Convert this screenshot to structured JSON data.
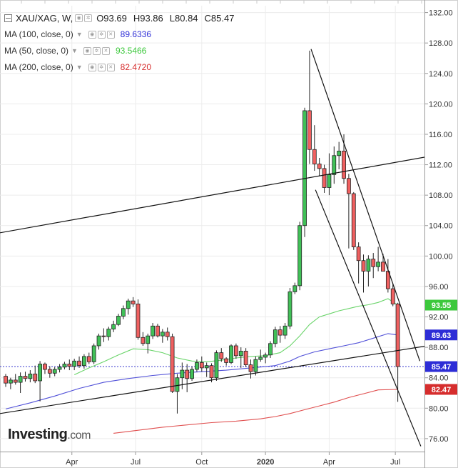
{
  "legend": {
    "title": "XAU/XAG, W,",
    "open": "O93.69",
    "high": "H93.86",
    "low": "L80.84",
    "close": "C85.47",
    "mas": [
      {
        "label": "MA (100, close, 0)",
        "value": "89.6336",
        "color": "#2d2dd6"
      },
      {
        "label": "MA (50, close, 0)",
        "value": "93.5466",
        "color": "#3cc83c"
      },
      {
        "label": "MA (200, close, 0)",
        "value": "82.4720",
        "color": "#d62d2d"
      }
    ]
  },
  "logo": {
    "brand": "Investing",
    "suffix": ".com"
  },
  "chart_data": {
    "type": "candlestick",
    "symbol": "XAU/XAG",
    "interval": "W",
    "y_range": [
      74.3,
      132.9
    ],
    "y_ticks": [
      "132.00",
      "128.00",
      "124.00",
      "120.00",
      "116.00",
      "112.00",
      "108.00",
      "104.00",
      "100.00",
      "96.00",
      "92.00",
      "88.00",
      "84.00",
      "80.00",
      "76.00"
    ],
    "x_labels": [
      "Apr",
      "Jul",
      "Oct",
      "2020",
      "Apr",
      "Jul"
    ],
    "x_label_positions_weeks": [
      13.5,
      26.5,
      40,
      53,
      66,
      79.5
    ],
    "price_tags": [
      {
        "value": 93.55,
        "label": "93.55",
        "color": "#3cc83c"
      },
      {
        "value": 89.63,
        "label": "89.63",
        "color": "#2d2dd6"
      },
      {
        "value": 85.47,
        "label": "85.47",
        "color": "#2d2dd6"
      },
      {
        "value": 82.47,
        "label": "82.47",
        "color": "#d62d2d"
      }
    ],
    "last_price_line": 85.47,
    "candles": [
      [
        84.2,
        84.5,
        82.8,
        83.3
      ],
      [
        83.3,
        84.0,
        82.5,
        83.7
      ],
      [
        83.7,
        84.5,
        83.1,
        83.4
      ],
      [
        83.4,
        84.7,
        82.0,
        84.2
      ],
      [
        84.2,
        84.8,
        83.5,
        83.9
      ],
      [
        83.9,
        85.0,
        83.4,
        84.5
      ],
      [
        84.5,
        85.6,
        83.3,
        83.6
      ],
      [
        83.6,
        86.2,
        80.9,
        85.8
      ],
      [
        85.8,
        86.0,
        84.5,
        85.1
      ],
      [
        85.1,
        85.5,
        84.0,
        84.6
      ],
      [
        84.6,
        85.4,
        84.2,
        85.1
      ],
      [
        85.1,
        85.8,
        84.7,
        85.4
      ],
      [
        85.4,
        86.1,
        85.1,
        85.8
      ],
      [
        85.8,
        86.4,
        85.0,
        85.5
      ],
      [
        85.5,
        86.5,
        85.0,
        86.2
      ],
      [
        86.2,
        86.8,
        85.3,
        85.6
      ],
      [
        85.6,
        87.1,
        85.2,
        86.8
      ],
      [
        86.8,
        87.3,
        85.8,
        86.1
      ],
      [
        86.1,
        88.5,
        85.8,
        88.2
      ],
      [
        88.2,
        89.8,
        87.7,
        89.5
      ],
      [
        89.5,
        90.5,
        88.7,
        89.4
      ],
      [
        89.4,
        90.7,
        88.9,
        90.4
      ],
      [
        90.4,
        91.5,
        90.0,
        91.0
      ],
      [
        91.0,
        92.4,
        90.8,
        92.1
      ],
      [
        92.1,
        93.5,
        91.7,
        93.1
      ],
      [
        93.1,
        94.4,
        92.3,
        94.1
      ],
      [
        94.1,
        94.6,
        93.3,
        93.7
      ],
      [
        93.7,
        94.3,
        89.0,
        89.3
      ],
      [
        89.3,
        90.0,
        88.2,
        88.5
      ],
      [
        88.5,
        89.8,
        87.2,
        89.5
      ],
      [
        89.5,
        91.2,
        89.1,
        90.8
      ],
      [
        90.8,
        91.1,
        89.3,
        89.5
      ],
      [
        89.5,
        90.4,
        88.6,
        90.0
      ],
      [
        90.0,
        90.6,
        88.9,
        89.4
      ],
      [
        89.4,
        89.8,
        82.0,
        82.2
      ],
      [
        82.2,
        84.5,
        79.3,
        84.0
      ],
      [
        84.0,
        86.0,
        82.5,
        85.0
      ],
      [
        85.0,
        85.8,
        82.1,
        83.9
      ],
      [
        83.9,
        85.5,
        83.6,
        85.1
      ],
      [
        85.1,
        86.4,
        84.8,
        86.0
      ],
      [
        86.0,
        86.8,
        84.8,
        85.3
      ],
      [
        85.3,
        86.0,
        84.1,
        85.6
      ],
      [
        85.6,
        85.9,
        83.4,
        84.0
      ],
      [
        84.0,
        87.6,
        83.6,
        87.3
      ],
      [
        87.3,
        87.9,
        86.1,
        86.5
      ],
      [
        86.5,
        86.7,
        85.6,
        86.0
      ],
      [
        86.0,
        88.4,
        85.8,
        88.2
      ],
      [
        88.2,
        88.5,
        86.5,
        86.9
      ],
      [
        86.9,
        88.0,
        85.3,
        87.5
      ],
      [
        87.5,
        87.9,
        85.4,
        85.7
      ],
      [
        85.7,
        86.4,
        83.9,
        84.8
      ],
      [
        84.8,
        86.8,
        84.3,
        86.4
      ],
      [
        86.4,
        87.7,
        86.1,
        86.7
      ],
      [
        86.7,
        87.3,
        85.9,
        87.0
      ],
      [
        87.0,
        88.8,
        86.6,
        88.5
      ],
      [
        88.5,
        90.7,
        88.0,
        90.3
      ],
      [
        90.3,
        90.8,
        88.6,
        89.6
      ],
      [
        89.6,
        91.2,
        89.1,
        90.8
      ],
      [
        90.8,
        95.8,
        90.4,
        95.3
      ],
      [
        95.3,
        96.5,
        95.0,
        96.1
      ],
      [
        96.1,
        104.5,
        95.5,
        104.0
      ],
      [
        104.0,
        119.5,
        102.5,
        119.1
      ],
      [
        119.1,
        127.0,
        112.1,
        114.0
      ],
      [
        114.0,
        117.2,
        111.2,
        112.1
      ],
      [
        112.1,
        112.9,
        110.5,
        111.5
      ],
      [
        111.5,
        112.0,
        108.3,
        109.0
      ],
      [
        109.0,
        113.5,
        108.0,
        110.7
      ],
      [
        110.7,
        114.4,
        109.5,
        113.2
      ],
      [
        113.2,
        115.0,
        111.4,
        113.8
      ],
      [
        113.8,
        116.0,
        109.5,
        110.2
      ],
      [
        110.2,
        110.8,
        101.0,
        108.2
      ],
      [
        108.2,
        108.4,
        100.8,
        101.2
      ],
      [
        101.2,
        101.8,
        96.4,
        99.4
      ],
      [
        99.4,
        100.2,
        95.2,
        98.0
      ],
      [
        98.0,
        100.1,
        96.0,
        99.6
      ],
      [
        99.6,
        100.4,
        97.1,
        98.6
      ],
      [
        98.6,
        101.2,
        98.0,
        99.2
      ],
      [
        99.2,
        100.3,
        98.2,
        98.0
      ],
      [
        98.0,
        99.6,
        95.2,
        95.7
      ],
      [
        95.7,
        96.3,
        93.4,
        93.7
      ],
      [
        93.69,
        93.86,
        80.84,
        85.47
      ]
    ],
    "ma50": [
      [
        14,
        84.4
      ],
      [
        17,
        85.3
      ],
      [
        20,
        86.1
      ],
      [
        23,
        87.0
      ],
      [
        26,
        87.8
      ],
      [
        29,
        87.7
      ],
      [
        32,
        87.3
      ],
      [
        35,
        86.6
      ],
      [
        38,
        86.2
      ],
      [
        41,
        86.1
      ],
      [
        44,
        86.3
      ],
      [
        47,
        86.6
      ],
      [
        50,
        86.8
      ],
      [
        53,
        86.9
      ],
      [
        56,
        87.3
      ],
      [
        58,
        88.2
      ],
      [
        60,
        89.5
      ],
      [
        62,
        91.0
      ],
      [
        64,
        92.0
      ],
      [
        66,
        92.4
      ],
      [
        68,
        92.8
      ],
      [
        70,
        93.1
      ],
      [
        72,
        93.4
      ],
      [
        74,
        93.6
      ],
      [
        76,
        93.9
      ],
      [
        78,
        94.4
      ],
      [
        80,
        93.55
      ]
    ],
    "ma100": [
      [
        0,
        79.9
      ],
      [
        5,
        80.7
      ],
      [
        10,
        81.6
      ],
      [
        15,
        82.6
      ],
      [
        20,
        83.4
      ],
      [
        25,
        83.9
      ],
      [
        30,
        84.3
      ],
      [
        35,
        84.6
      ],
      [
        40,
        84.8
      ],
      [
        45,
        85.0
      ],
      [
        50,
        85.3
      ],
      [
        55,
        85.6
      ],
      [
        58,
        86.2
      ],
      [
        60,
        86.8
      ],
      [
        63,
        87.4
      ],
      [
        66,
        87.8
      ],
      [
        69,
        88.2
      ],
      [
        72,
        88.6
      ],
      [
        75,
        89.2
      ],
      [
        78,
        89.8
      ],
      [
        80,
        89.63
      ]
    ],
    "ma200": [
      [
        22,
        76.7
      ],
      [
        27,
        77.1
      ],
      [
        32,
        77.5
      ],
      [
        37,
        77.8
      ],
      [
        42,
        78.1
      ],
      [
        47,
        78.3
      ],
      [
        52,
        78.6
      ],
      [
        55,
        78.9
      ],
      [
        58,
        79.3
      ],
      [
        61,
        79.8
      ],
      [
        64,
        80.3
      ],
      [
        67,
        80.8
      ],
      [
        70,
        81.4
      ],
      [
        73,
        81.9
      ],
      [
        76,
        82.4
      ],
      [
        80,
        82.47
      ]
    ],
    "trend_lines": [
      {
        "from": [
          -6,
          102.5
        ],
        "to": [
          89,
          113.4
        ]
      },
      {
        "from": [
          -6,
          78.8
        ],
        "to": [
          89,
          88.5
        ]
      },
      {
        "from": [
          62.3,
          127.2
        ],
        "to": [
          84.5,
          86.2
        ]
      },
      {
        "from": [
          63.2,
          108.7
        ],
        "to": [
          84.7,
          75.0
        ]
      }
    ]
  }
}
